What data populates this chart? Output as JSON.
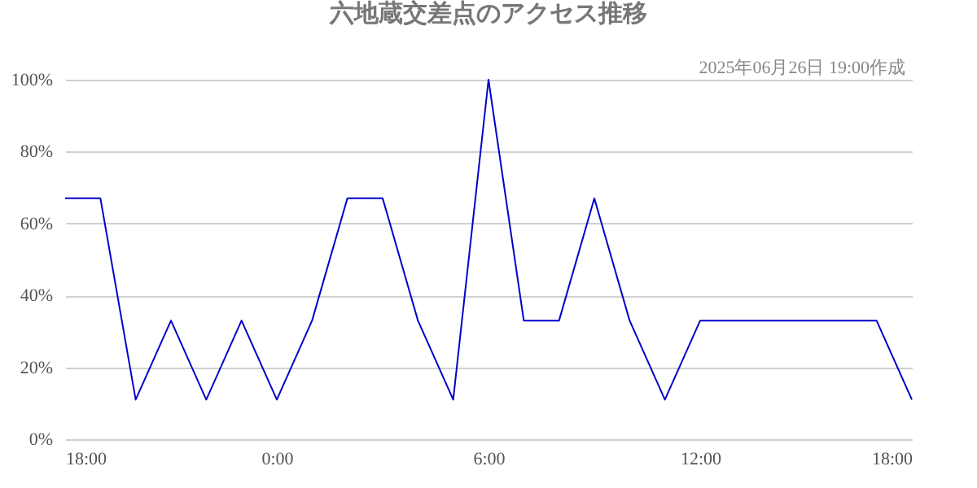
{
  "chart_data": {
    "type": "line",
    "title": "六地蔵交差点のアクセス推移",
    "subtitle": "2025年06月26日 19:00作成",
    "x": [
      "2025-06-25T18:00",
      "2025-06-25T19:00",
      "2025-06-25T20:00",
      "2025-06-25T21:00",
      "2025-06-25T22:00",
      "2025-06-25T23:00",
      "2025-06-26T00:00",
      "2025-06-26T01:00",
      "2025-06-26T02:00",
      "2025-06-26T03:00",
      "2025-06-26T04:00",
      "2025-06-26T05:00",
      "2025-06-26T06:00",
      "2025-06-26T07:00",
      "2025-06-26T08:00",
      "2025-06-26T09:00",
      "2025-06-26T10:00",
      "2025-06-26T11:00",
      "2025-06-26T12:00",
      "2025-06-26T13:00",
      "2025-06-26T14:00",
      "2025-06-26T15:00",
      "2025-06-26T16:00",
      "2025-06-26T17:00",
      "2025-06-26T18:00"
    ],
    "series": [
      {
        "color": "#0000cc",
        "values": [
          67,
          67,
          11,
          33,
          11,
          33,
          11,
          33,
          67,
          67,
          33,
          11,
          100,
          33,
          33,
          67,
          33,
          11,
          33,
          33,
          33,
          33,
          33,
          33,
          11
        ]
      }
    ],
    "xlim": [
      "2025-06-25T18:00",
      "2025-06-26T18:00"
    ],
    "xticks": [
      {
        "value": "2025-06-25T18:00",
        "label": "18:00"
      },
      {
        "value": "2025-06-26T00:00",
        "label": "0:00"
      },
      {
        "value": "2025-06-26T06:00",
        "label": "6:00"
      },
      {
        "value": "2025-06-26T12:00",
        "label": "12:00"
      },
      {
        "value": "2025-06-26T18:00",
        "label": "18:00"
      }
    ],
    "ylim": [
      0,
      100
    ],
    "yticks": [
      {
        "value": 0,
        "label": "0%"
      },
      {
        "value": 20,
        "label": "20%"
      },
      {
        "value": 40,
        "label": "40%"
      },
      {
        "value": 60,
        "label": "60%"
      },
      {
        "value": 80,
        "label": "80%"
      },
      {
        "value": 100,
        "label": "100%"
      }
    ],
    "grid": "y",
    "marker": "none",
    "line_style": "solid"
  }
}
